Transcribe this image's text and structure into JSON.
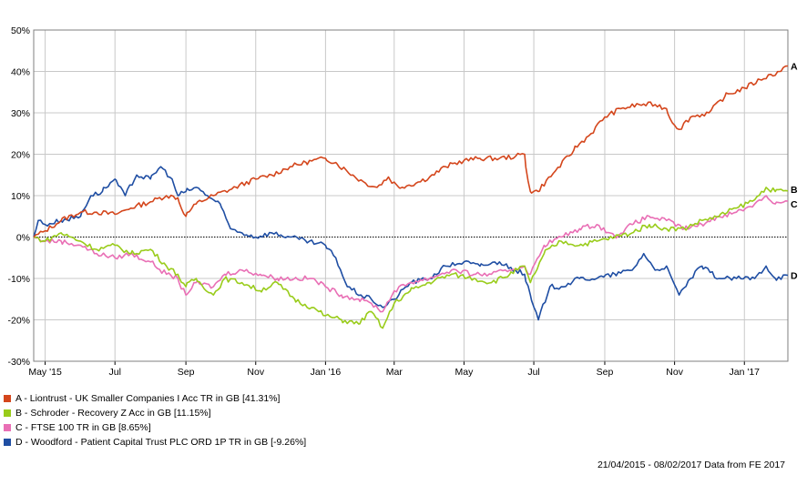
{
  "chart_data": {
    "type": "line",
    "y_unit": "%",
    "ylim": [
      -30,
      50
    ],
    "y_ticks": [
      "50%",
      "40%",
      "30%",
      "20%",
      "10%",
      "0%",
      "-10%",
      "-20%",
      "-30%"
    ],
    "x_tick_labels": [
      "May '15",
      "Jul",
      "Sep",
      "Nov",
      "Jan '16",
      "Mar",
      "May",
      "Jul",
      "Sep",
      "Nov",
      "Jan '17"
    ],
    "xlim": [
      "2015-04-21",
      "2017-02-08"
    ],
    "grid": true,
    "zero_line": "dotted",
    "series": [
      {
        "id": "A",
        "end_label": "A",
        "legend": "A - Liontrust - UK Smaller Companies I Acc TR in GB [41.31%]",
        "color": "#d4461c",
        "points": [
          [
            "2015-04-21",
            0
          ],
          [
            "2015-05-01",
            1.5
          ],
          [
            "2015-05-15",
            4
          ],
          [
            "2015-06-01",
            6
          ],
          [
            "2015-06-15",
            6
          ],
          [
            "2015-07-01",
            5.5
          ],
          [
            "2015-07-15",
            7
          ],
          [
            "2015-08-01",
            8.5
          ],
          [
            "2015-08-15",
            10
          ],
          [
            "2015-08-25",
            9.5
          ],
          [
            "2015-09-01",
            5
          ],
          [
            "2015-09-10",
            8
          ],
          [
            "2015-09-25",
            10
          ],
          [
            "2015-10-15",
            12
          ],
          [
            "2015-11-01",
            14
          ],
          [
            "2015-11-15",
            15
          ],
          [
            "2015-12-01",
            17
          ],
          [
            "2015-12-15",
            18
          ],
          [
            "2016-01-01",
            19
          ],
          [
            "2016-01-10",
            18
          ],
          [
            "2016-01-25",
            15
          ],
          [
            "2016-02-05",
            13
          ],
          [
            "2016-02-15",
            12
          ],
          [
            "2016-02-25",
            14.5
          ],
          [
            "2016-03-05",
            12
          ],
          [
            "2016-03-20",
            13
          ],
          [
            "2016-04-01",
            14.5
          ],
          [
            "2016-04-15",
            17
          ],
          [
            "2016-05-01",
            18.5
          ],
          [
            "2016-05-15",
            19
          ],
          [
            "2016-06-01",
            19
          ],
          [
            "2016-06-15",
            19.5
          ],
          [
            "2016-06-23",
            20
          ],
          [
            "2016-06-28",
            11
          ],
          [
            "2016-07-05",
            11
          ],
          [
            "2016-07-20",
            16
          ],
          [
            "2016-08-05",
            21
          ],
          [
            "2016-08-20",
            25
          ],
          [
            "2016-09-01",
            29
          ],
          [
            "2016-09-15",
            31
          ],
          [
            "2016-10-01",
            32
          ],
          [
            "2016-10-15",
            32
          ],
          [
            "2016-10-25",
            31
          ],
          [
            "2016-11-01",
            27
          ],
          [
            "2016-11-05",
            26
          ],
          [
            "2016-11-15",
            29
          ],
          [
            "2016-12-01",
            30
          ],
          [
            "2016-12-15",
            34
          ],
          [
            "2017-01-01",
            36
          ],
          [
            "2017-01-15",
            38
          ],
          [
            "2017-02-01",
            40
          ],
          [
            "2017-02-08",
            41.31
          ]
        ]
      },
      {
        "id": "B",
        "end_label": "B",
        "legend": "B - Schroder - Recovery Z Acc in GB [11.15%]",
        "color": "#99cc1a",
        "points": [
          [
            "2015-04-21",
            0
          ],
          [
            "2015-05-01",
            -1
          ],
          [
            "2015-05-15",
            1
          ],
          [
            "2015-06-01",
            -1
          ],
          [
            "2015-06-15",
            -3
          ],
          [
            "2015-07-01",
            -2
          ],
          [
            "2015-07-15",
            -4
          ],
          [
            "2015-08-01",
            -3
          ],
          [
            "2015-08-15",
            -7
          ],
          [
            "2015-08-25",
            -9
          ],
          [
            "2015-09-01",
            -12
          ],
          [
            "2015-09-10",
            -10
          ],
          [
            "2015-09-25",
            -14
          ],
          [
            "2015-10-05",
            -10
          ],
          [
            "2015-10-20",
            -11
          ],
          [
            "2015-11-05",
            -13
          ],
          [
            "2015-11-20",
            -11
          ],
          [
            "2015-12-05",
            -15
          ],
          [
            "2015-12-20",
            -17
          ],
          [
            "2016-01-01",
            -19
          ],
          [
            "2016-01-15",
            -20
          ],
          [
            "2016-01-30",
            -21
          ],
          [
            "2016-02-10",
            -18
          ],
          [
            "2016-02-20",
            -22
          ],
          [
            "2016-03-01",
            -16
          ],
          [
            "2016-03-15",
            -13
          ],
          [
            "2016-04-01",
            -11
          ],
          [
            "2016-04-20",
            -9
          ],
          [
            "2016-05-10",
            -10
          ],
          [
            "2016-05-25",
            -11
          ],
          [
            "2016-06-10",
            -9
          ],
          [
            "2016-06-23",
            -7
          ],
          [
            "2016-06-28",
            -11
          ],
          [
            "2016-07-10",
            -4
          ],
          [
            "2016-07-25",
            -1
          ],
          [
            "2016-08-10",
            -2
          ],
          [
            "2016-08-25",
            -1
          ],
          [
            "2016-09-10",
            0
          ],
          [
            "2016-09-25",
            1
          ],
          [
            "2016-10-10",
            3
          ],
          [
            "2016-10-25",
            2
          ],
          [
            "2016-11-10",
            2
          ],
          [
            "2016-11-25",
            4
          ],
          [
            "2016-12-10",
            5
          ],
          [
            "2016-12-25",
            7
          ],
          [
            "2017-01-10",
            9
          ],
          [
            "2017-01-20",
            12
          ],
          [
            "2017-01-28",
            11
          ],
          [
            "2017-02-08",
            11.15
          ]
        ]
      },
      {
        "id": "C",
        "end_label": "C",
        "legend": "C - FTSE 100 TR in GB [8.65%]",
        "color": "#e96fb5",
        "points": [
          [
            "2015-04-21",
            0
          ],
          [
            "2015-05-01",
            -1
          ],
          [
            "2015-05-15",
            -1
          ],
          [
            "2015-06-01",
            -2
          ],
          [
            "2015-06-15",
            -4
          ],
          [
            "2015-07-01",
            -5
          ],
          [
            "2015-07-15",
            -4
          ],
          [
            "2015-08-01",
            -6
          ],
          [
            "2015-08-15",
            -9
          ],
          [
            "2015-08-25",
            -10
          ],
          [
            "2015-09-01",
            -14
          ],
          [
            "2015-09-10",
            -11
          ],
          [
            "2015-09-25",
            -12
          ],
          [
            "2015-10-05",
            -9
          ],
          [
            "2015-10-20",
            -8
          ],
          [
            "2015-11-05",
            -9
          ],
          [
            "2015-11-20",
            -10
          ],
          [
            "2015-12-05",
            -10
          ],
          [
            "2015-12-20",
            -10
          ],
          [
            "2016-01-01",
            -12
          ],
          [
            "2016-01-15",
            -14
          ],
          [
            "2016-01-30",
            -15
          ],
          [
            "2016-02-10",
            -16
          ],
          [
            "2016-02-20",
            -18
          ],
          [
            "2016-03-01",
            -13
          ],
          [
            "2016-03-15",
            -11
          ],
          [
            "2016-04-01",
            -10
          ],
          [
            "2016-04-20",
            -8
          ],
          [
            "2016-05-10",
            -9
          ],
          [
            "2016-05-25",
            -9
          ],
          [
            "2016-06-10",
            -8
          ],
          [
            "2016-06-23",
            -7
          ],
          [
            "2016-06-28",
            -9
          ],
          [
            "2016-07-10",
            -2
          ],
          [
            "2016-07-25",
            0
          ],
          [
            "2016-08-10",
            2
          ],
          [
            "2016-08-25",
            3
          ],
          [
            "2016-09-10",
            0
          ],
          [
            "2016-09-25",
            3
          ],
          [
            "2016-10-10",
            5
          ],
          [
            "2016-10-25",
            4
          ],
          [
            "2016-11-10",
            2
          ],
          [
            "2016-11-25",
            3
          ],
          [
            "2016-12-10",
            5
          ],
          [
            "2016-12-25",
            6
          ],
          [
            "2017-01-10",
            8
          ],
          [
            "2017-01-20",
            10
          ],
          [
            "2017-01-28",
            8
          ],
          [
            "2017-02-08",
            8.65
          ]
        ]
      },
      {
        "id": "D",
        "end_label": "D",
        "legend": "D - Woodford - Patient Capital Trust PLC ORD 1P TR in GB [-9.26%]",
        "color": "#1f4ea3",
        "points": [
          [
            "2015-04-21",
            0
          ],
          [
            "2015-04-25",
            4
          ],
          [
            "2015-05-01",
            3
          ],
          [
            "2015-05-15",
            4
          ],
          [
            "2015-06-01",
            5
          ],
          [
            "2015-06-10",
            10
          ],
          [
            "2015-06-20",
            11
          ],
          [
            "2015-07-01",
            14
          ],
          [
            "2015-07-10",
            10
          ],
          [
            "2015-07-20",
            15
          ],
          [
            "2015-08-01",
            14
          ],
          [
            "2015-08-10",
            17
          ],
          [
            "2015-08-20",
            14
          ],
          [
            "2015-08-25",
            10
          ],
          [
            "2015-09-01",
            11
          ],
          [
            "2015-09-10",
            12
          ],
          [
            "2015-09-20",
            10
          ],
          [
            "2015-10-01",
            8
          ],
          [
            "2015-10-10",
            2
          ],
          [
            "2015-10-20",
            1
          ],
          [
            "2015-11-01",
            0
          ],
          [
            "2015-11-15",
            1
          ],
          [
            "2015-12-01",
            0
          ],
          [
            "2015-12-15",
            -1
          ],
          [
            "2016-01-01",
            -2
          ],
          [
            "2016-01-10",
            -5
          ],
          [
            "2016-01-20",
            -12
          ],
          [
            "2016-02-01",
            -14
          ],
          [
            "2016-02-10",
            -15
          ],
          [
            "2016-02-20",
            -17
          ],
          [
            "2016-03-01",
            -15
          ],
          [
            "2016-03-15",
            -11
          ],
          [
            "2016-04-01",
            -10
          ],
          [
            "2016-04-15",
            -7
          ],
          [
            "2016-05-01",
            -6
          ],
          [
            "2016-05-15",
            -7
          ],
          [
            "2016-06-01",
            -6
          ],
          [
            "2016-06-15",
            -8
          ],
          [
            "2016-06-23",
            -9
          ],
          [
            "2016-06-28",
            -14
          ],
          [
            "2016-07-05",
            -20
          ],
          [
            "2016-07-15",
            -12
          ],
          [
            "2016-07-25",
            -12
          ],
          [
            "2016-08-10",
            -10
          ],
          [
            "2016-08-25",
            -10
          ],
          [
            "2016-09-10",
            -9
          ],
          [
            "2016-09-25",
            -8
          ],
          [
            "2016-10-05",
            -4
          ],
          [
            "2016-10-15",
            -8
          ],
          [
            "2016-10-25",
            -7
          ],
          [
            "2016-11-05",
            -14
          ],
          [
            "2016-11-15",
            -10
          ],
          [
            "2016-11-25",
            -7
          ],
          [
            "2016-12-10",
            -10
          ],
          [
            "2016-12-25",
            -10
          ],
          [
            "2017-01-10",
            -10
          ],
          [
            "2017-01-20",
            -7
          ],
          [
            "2017-01-28",
            -10
          ],
          [
            "2017-02-08",
            -9.26
          ]
        ]
      }
    ]
  },
  "footnote": "21/04/2015 - 08/02/2017 Data from FE 2017"
}
